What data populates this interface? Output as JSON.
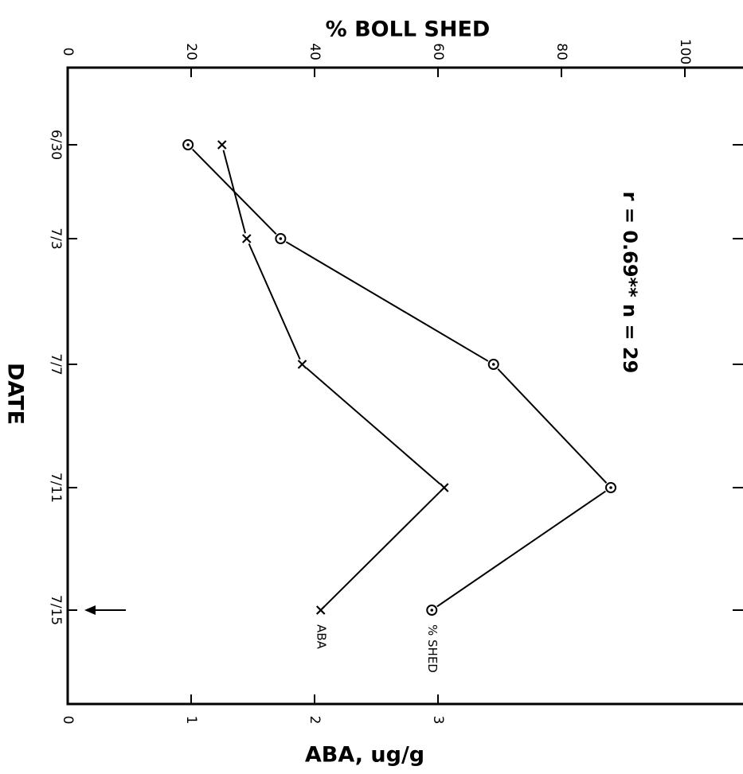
{
  "chart_data": {
    "type": "line",
    "title": "",
    "categories": [
      "6/30",
      "7/3",
      "7/7",
      "7/11",
      "7/15"
    ],
    "xlabel": "DATE",
    "left_axis": {
      "label": "ABA, ug/g",
      "range": [
        0,
        4
      ],
      "tick_values": [
        0,
        1,
        2,
        3
      ],
      "tick_labels": [
        "0",
        "1",
        "2",
        "3"
      ]
    },
    "right_axis": {
      "label": "% BOLL SHED",
      "range": [
        0,
        100
      ],
      "tick_values": [
        0,
        20,
        40,
        60,
        80,
        100
      ],
      "tick_labels": [
        "0",
        "20",
        "40",
        "60",
        "80",
        "100"
      ]
    },
    "series": [
      {
        "name": "% SHED",
        "axis": "right",
        "marker": "circle-dot",
        "values": [
          19.5,
          34.5,
          69,
          88,
          59
        ]
      },
      {
        "name": "ABA",
        "axis": "left",
        "marker": "x",
        "values": [
          1.25,
          1.45,
          1.9,
          3.05,
          2.05
        ]
      }
    ],
    "annotation": "r = 0.69** n = 29",
    "arrow_at": "7/15",
    "grid": false,
    "orientation": "rotated-90-clockwise"
  }
}
